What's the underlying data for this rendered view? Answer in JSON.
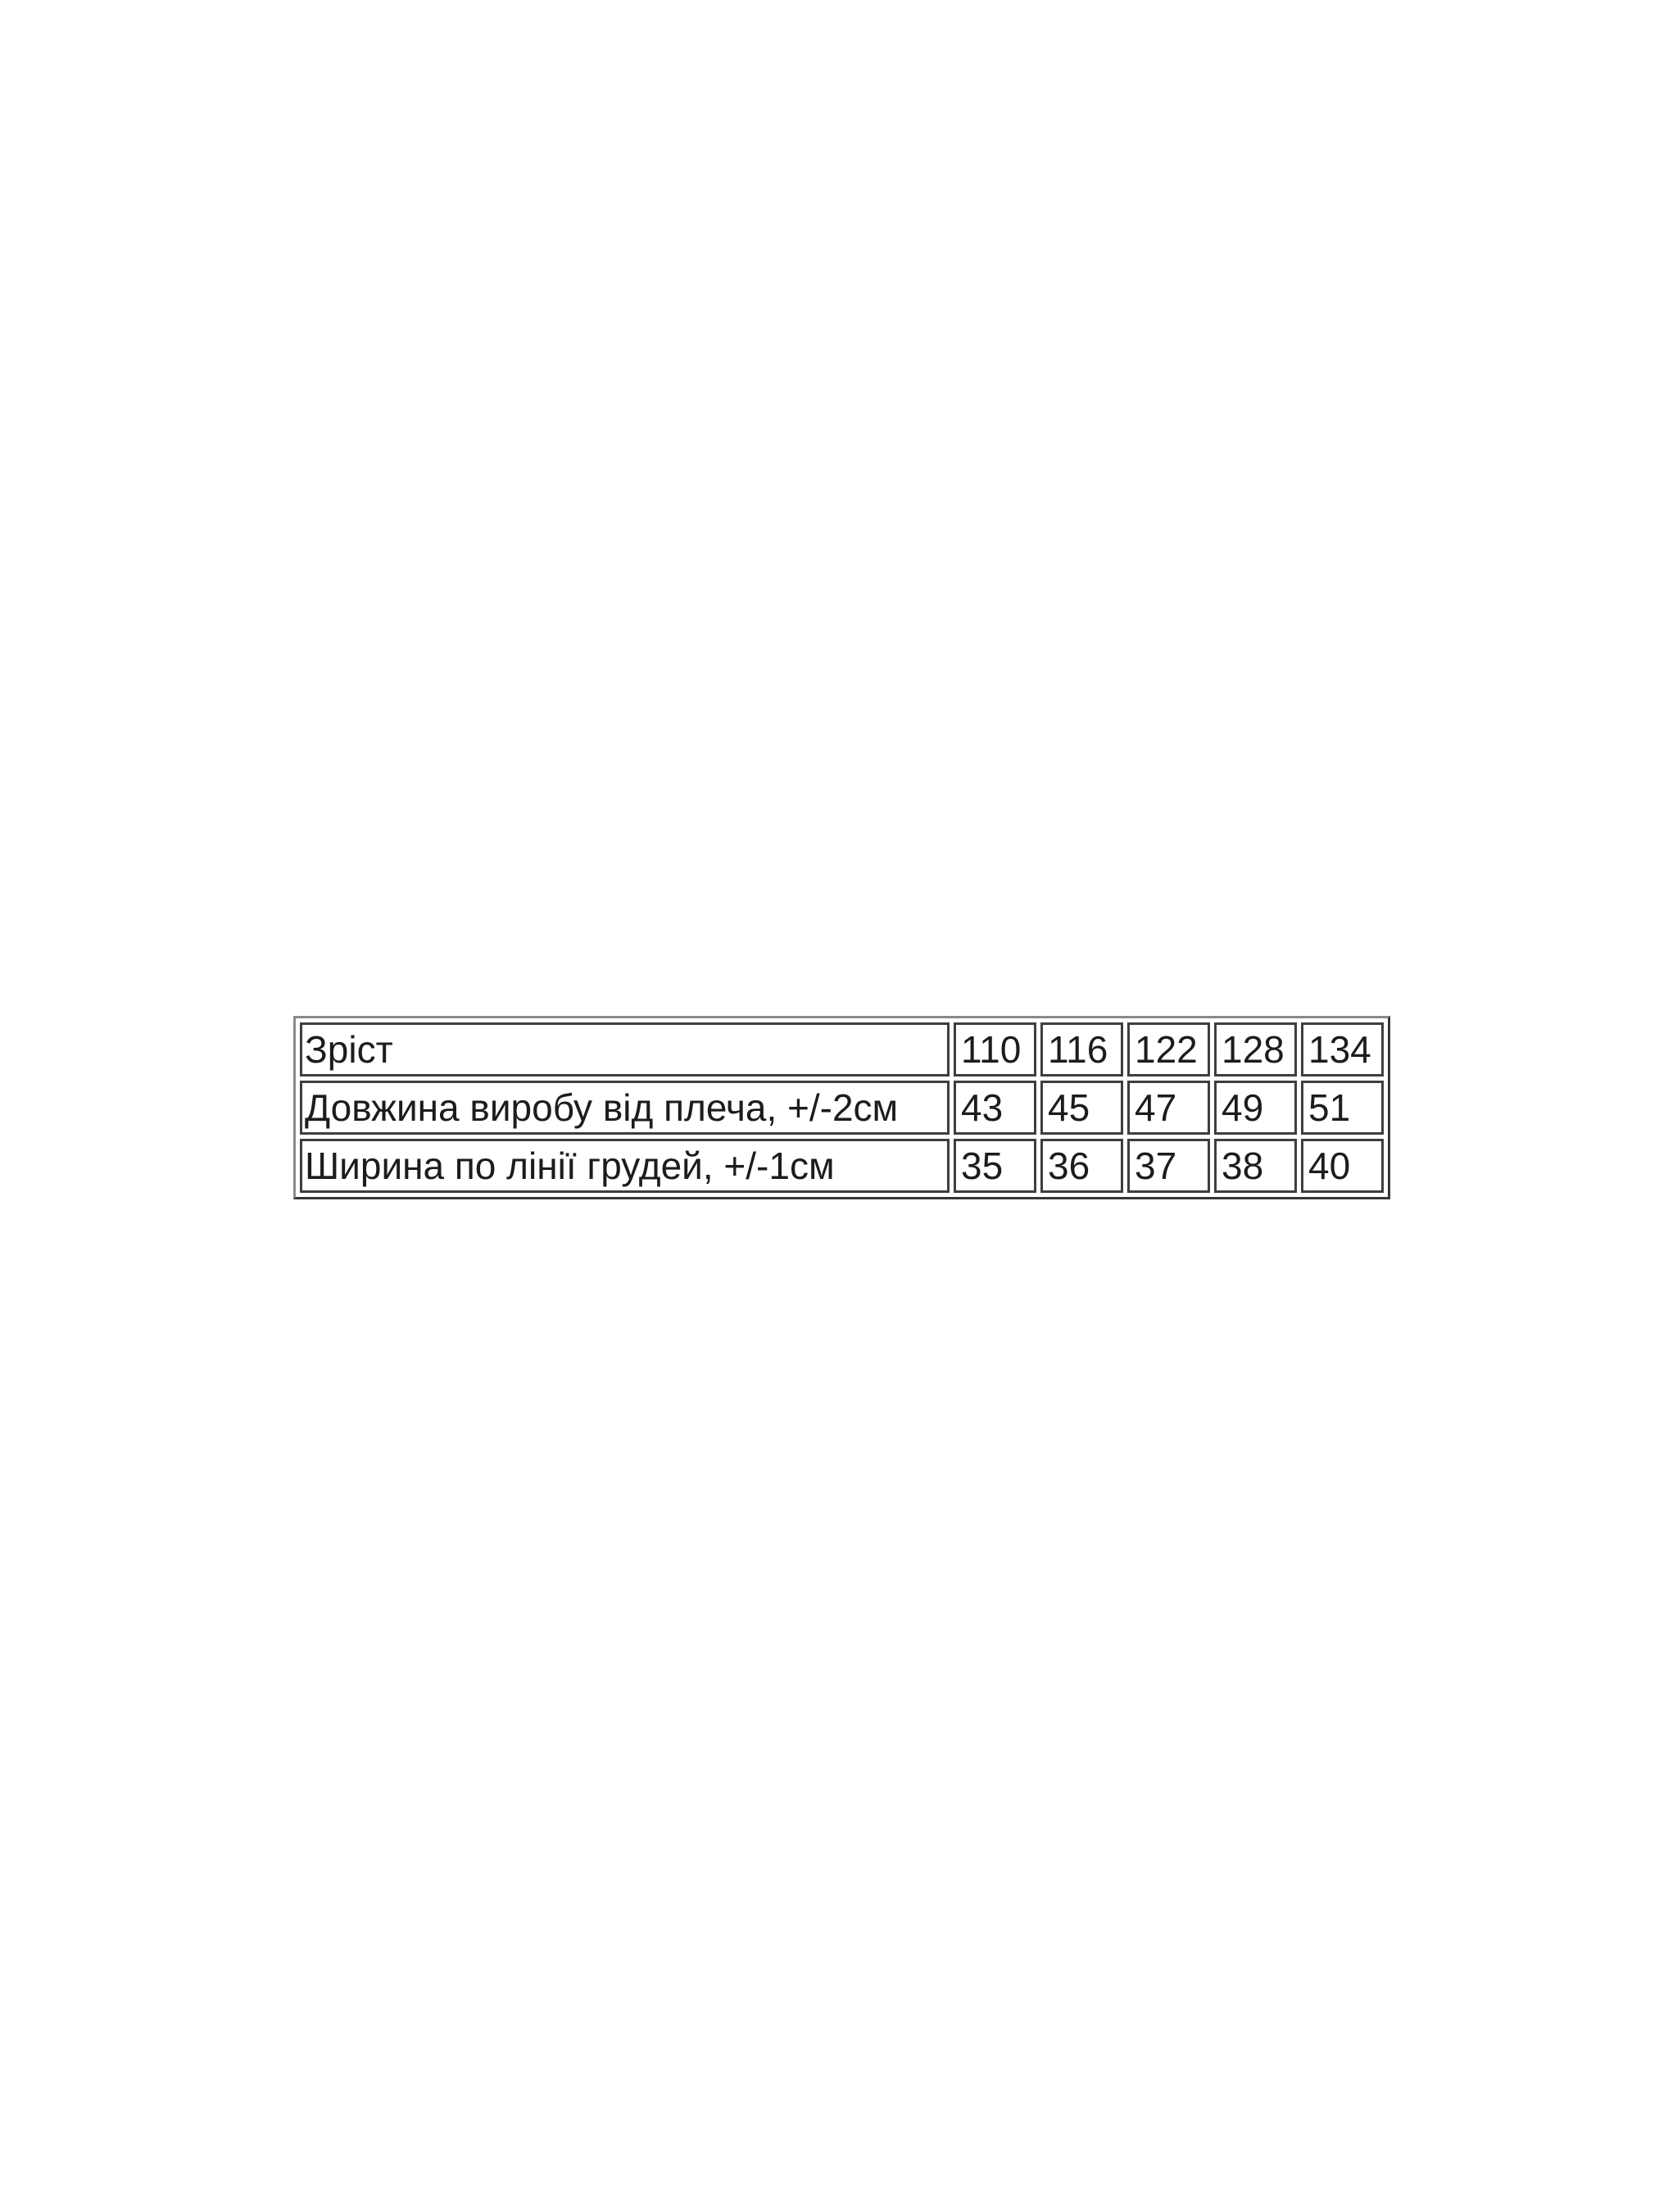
{
  "chart_data": {
    "type": "table",
    "rows": [
      [
        "Зріст",
        "110",
        "116",
        "122",
        "128",
        "134"
      ],
      [
        "Довжина виробу від плеча, +/-2см",
        "43",
        "45",
        "47",
        "49",
        "51"
      ],
      [
        "Ширина по лінії грудей, +/-1см",
        "35",
        "36",
        "37",
        "38",
        "40"
      ]
    ],
    "row_labels": [
      "Зріст",
      "Довжина виробу від плеча, +/-2см",
      "Ширина по лінії грудей, +/-1см"
    ],
    "sizes": [
      "110",
      "116",
      "122",
      "128",
      "134"
    ],
    "series": [
      {
        "name": "Довжина виробу від плеча, +/-2см",
        "values": [
          43,
          45,
          47,
          49,
          51
        ]
      },
      {
        "name": "Ширина по лінії грудей, +/-1см",
        "values": [
          35,
          36,
          37,
          38,
          40
        ]
      }
    ],
    "layout": {
      "grid": "on",
      "legend": "none"
    }
  },
  "colors": {
    "background": "#ffffff",
    "text": "#1c1c1c",
    "cell_border": "#3e3e3e",
    "outer_border": "#8a8a8a"
  }
}
